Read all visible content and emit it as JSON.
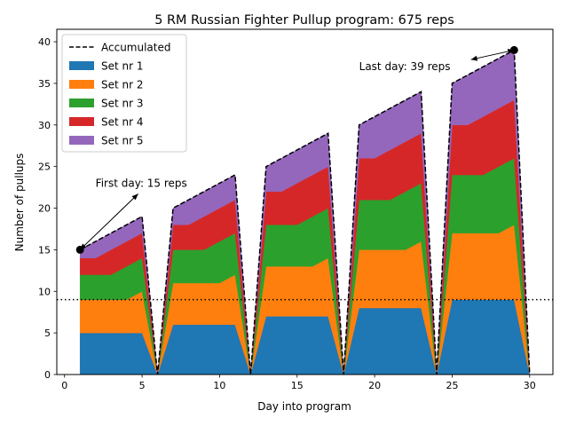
{
  "chart_data": {
    "type": "area",
    "title": "5 RM Russian Fighter Pullup program: 675 reps",
    "xlabel": "Day into program",
    "ylabel": "Number of pullups",
    "xlim": [
      -0.5,
      31.5
    ],
    "ylim": [
      0,
      41.5
    ],
    "xticks": [
      0,
      5,
      10,
      15,
      20,
      25,
      30
    ],
    "yticks": [
      0,
      5,
      10,
      15,
      20,
      25,
      30,
      35,
      40
    ],
    "x": [
      1,
      2,
      3,
      4,
      5,
      6,
      7,
      8,
      9,
      10,
      11,
      12,
      13,
      14,
      15,
      16,
      17,
      18,
      19,
      20,
      21,
      22,
      23,
      24,
      25,
      26,
      27,
      28,
      29,
      30
    ],
    "series": [
      {
        "name": "Set nr 1",
        "color": "#1f77b4",
        "values": [
          5,
          5,
          5,
          5,
          5,
          0,
          6,
          6,
          6,
          6,
          6,
          0,
          7,
          7,
          7,
          7,
          7,
          0,
          8,
          8,
          8,
          8,
          8,
          0,
          9,
          9,
          9,
          9,
          9,
          0
        ]
      },
      {
        "name": "Set nr 2",
        "color": "#ff7f0e",
        "values": [
          4,
          4,
          4,
          4,
          5,
          0,
          5,
          5,
          5,
          5,
          6,
          0,
          6,
          6,
          6,
          6,
          7,
          0,
          7,
          7,
          7,
          7,
          8,
          0,
          8,
          8,
          8,
          8,
          9,
          0
        ]
      },
      {
        "name": "Set nr 3",
        "color": "#2ca02c",
        "values": [
          3,
          3,
          3,
          4,
          4,
          0,
          4,
          4,
          4,
          5,
          5,
          0,
          5,
          5,
          5,
          6,
          6,
          0,
          6,
          6,
          6,
          7,
          7,
          0,
          7,
          7,
          7,
          8,
          8,
          0
        ]
      },
      {
        "name": "Set nr 4",
        "color": "#d62728",
        "values": [
          2,
          2,
          3,
          3,
          3,
          0,
          3,
          3,
          4,
          4,
          4,
          0,
          4,
          4,
          5,
          5,
          5,
          0,
          5,
          5,
          6,
          6,
          6,
          0,
          6,
          6,
          7,
          7,
          7,
          0
        ]
      },
      {
        "name": "Set nr 5",
        "color": "#9467bd",
        "values": [
          1,
          2,
          2,
          2,
          2,
          0,
          2,
          3,
          3,
          3,
          3,
          0,
          3,
          4,
          4,
          4,
          4,
          0,
          4,
          5,
          5,
          5,
          5,
          0,
          5,
          6,
          6,
          6,
          6,
          0
        ]
      }
    ],
    "accumulated": {
      "name": "Accumulated",
      "color": "#000000",
      "style": "dashed",
      "values": [
        15,
        16,
        17,
        18,
        19,
        0,
        20,
        21,
        22,
        23,
        24,
        0,
        25,
        26,
        27,
        28,
        29,
        0,
        30,
        31,
        32,
        33,
        34,
        0,
        35,
        36,
        37,
        38,
        39,
        0
      ]
    },
    "hline": {
      "y": 9,
      "style": "dotted",
      "color": "#000000"
    },
    "annotations": [
      {
        "text": "First day: 15 reps",
        "point": [
          1,
          15
        ],
        "text_pos": [
          2,
          23
        ]
      },
      {
        "text": "Last day: 39 reps",
        "point": [
          29,
          39
        ],
        "text_pos": [
          19,
          37
        ]
      }
    ],
    "legend_position": "top-left",
    "grid": false
  }
}
